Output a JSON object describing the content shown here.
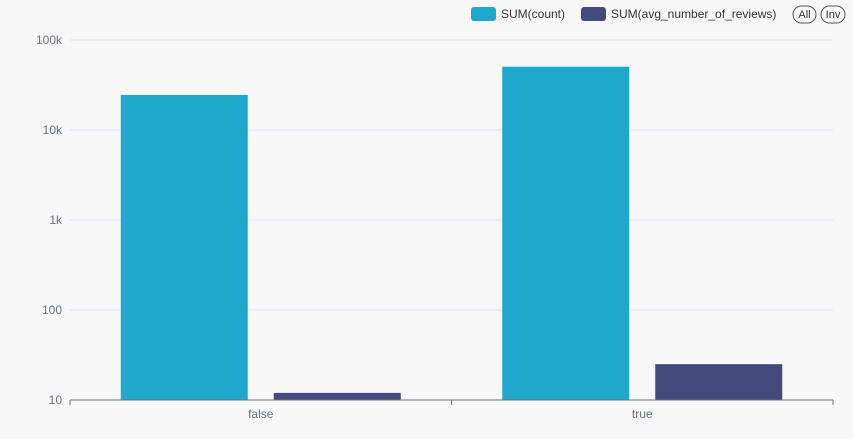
{
  "chart_data": {
    "type": "bar",
    "y_scale": "log",
    "ylim": [
      10,
      100000
    ],
    "y_ticks": [
      {
        "value": 10,
        "label": "10"
      },
      {
        "value": 100,
        "label": "100"
      },
      {
        "value": 1000,
        "label": "1k"
      },
      {
        "value": 10000,
        "label": "10k"
      },
      {
        "value": 100000,
        "label": "100k"
      }
    ],
    "categories": [
      "false",
      "true"
    ],
    "series": [
      {
        "name": "SUM(count)",
        "color": "#1fa8cb",
        "values": [
          24500,
          50500
        ]
      },
      {
        "name": "SUM(avg_number_of_reviews)",
        "color": "#444b7c",
        "values": [
          12,
          25
        ]
      }
    ],
    "grid": true,
    "legend_position": "top-right"
  },
  "legend": {
    "buttons": [
      {
        "label": "All"
      },
      {
        "label": "Inv"
      }
    ]
  }
}
